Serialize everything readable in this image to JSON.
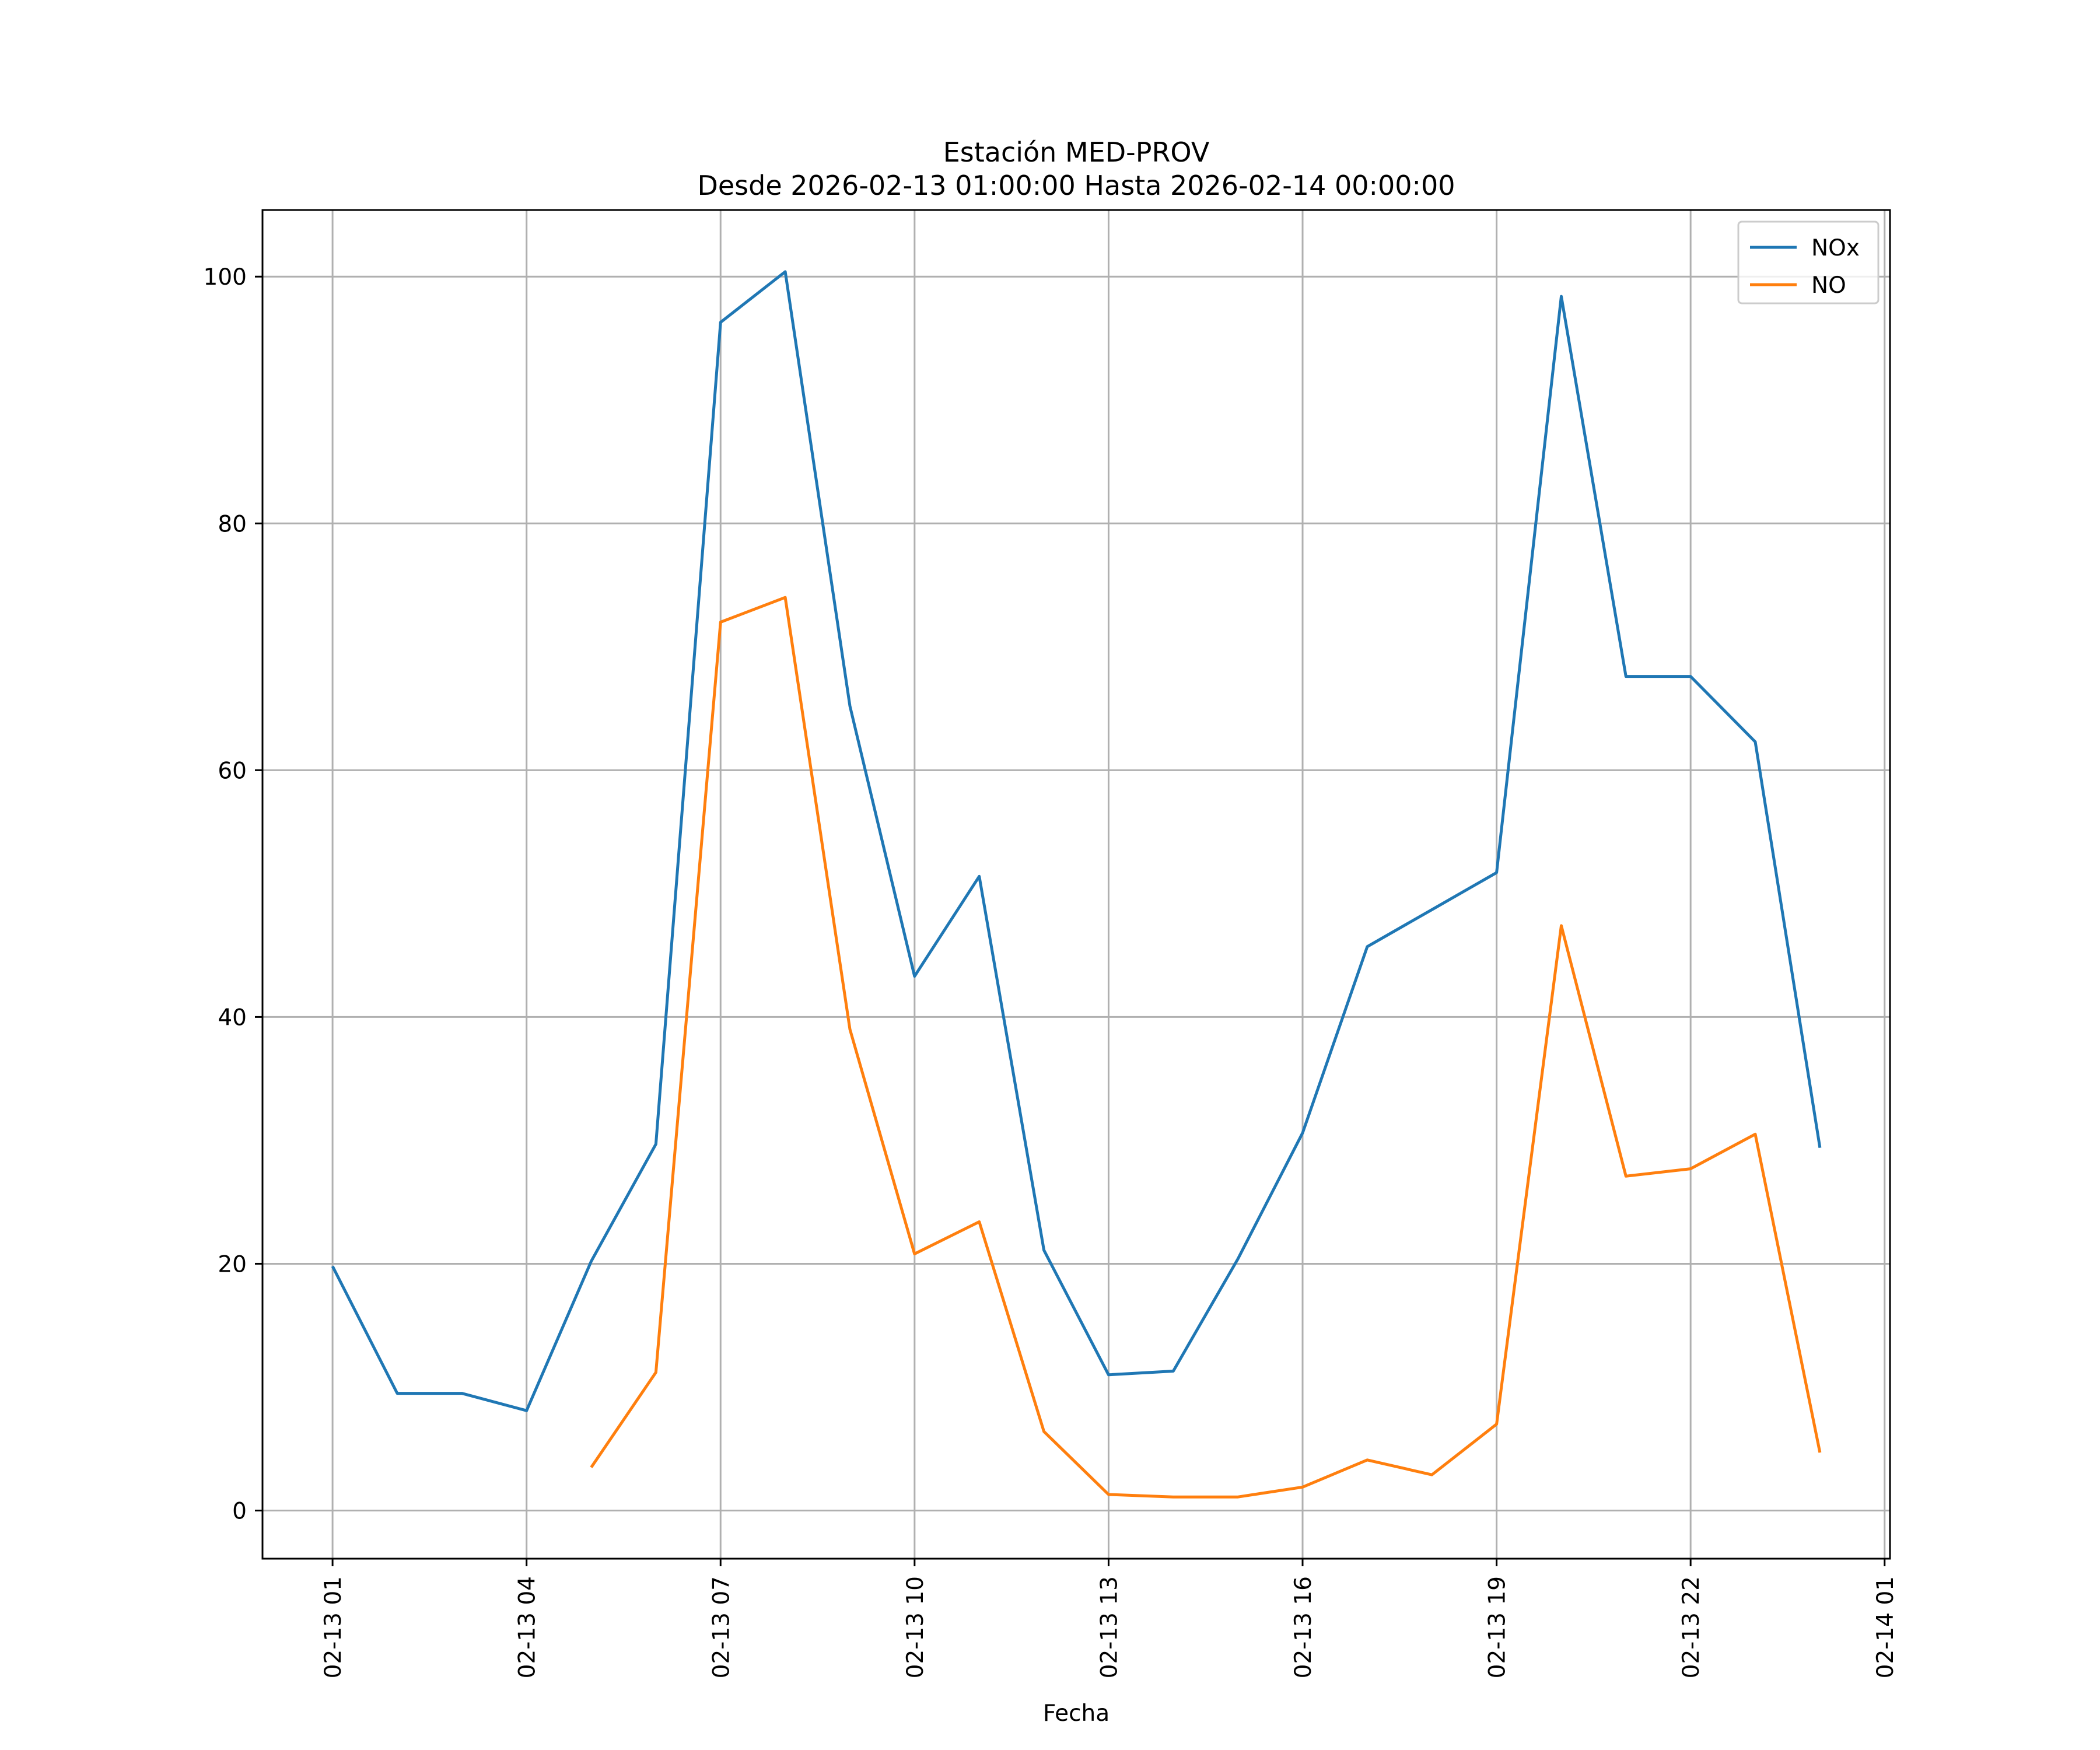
{
  "chart_data": {
    "type": "line",
    "title": "Estación MED-PROV",
    "subtitle": "Desde 2026-02-13 01:00:00 Hasta 2026-02-14 00:00:00",
    "xlabel": "Fecha",
    "ylabel": "",
    "x": [
      "2026-02-13 01:00",
      "2026-02-13 02:00",
      "2026-02-13 03:00",
      "2026-02-13 04:00",
      "2026-02-13 05:00",
      "2026-02-13 06:00",
      "2026-02-13 07:00",
      "2026-02-13 08:00",
      "2026-02-13 09:00",
      "2026-02-13 10:00",
      "2026-02-13 11:00",
      "2026-02-13 12:00",
      "2026-02-13 13:00",
      "2026-02-13 14:00",
      "2026-02-13 15:00",
      "2026-02-13 16:00",
      "2026-02-13 17:00",
      "2026-02-13 18:00",
      "2026-02-13 19:00",
      "2026-02-13 20:00",
      "2026-02-13 21:00",
      "2026-02-13 22:00",
      "2026-02-13 23:00",
      "2026-02-14 00:00"
    ],
    "series": [
      {
        "name": "NOx",
        "color": "#1f77b4",
        "values": [
          19.8,
          9.5,
          9.5,
          8.1,
          20.2,
          29.7,
          96.3,
          100.4,
          65.2,
          43.3,
          51.4,
          21.1,
          11.0,
          11.3,
          20.4,
          30.6,
          45.7,
          48.7,
          51.7,
          98.4,
          67.6,
          67.6,
          62.3,
          29.4
        ]
      },
      {
        "name": "NO",
        "color": "#ff7f0e",
        "values": [
          null,
          null,
          null,
          null,
          3.5,
          11.2,
          72.0,
          74.0,
          39.0,
          20.8,
          23.4,
          6.4,
          1.3,
          1.1,
          1.1,
          1.9,
          4.1,
          2.9,
          7.0,
          47.4,
          27.1,
          27.7,
          30.5,
          4.7
        ]
      }
    ],
    "xticks": [
      "02-13 01",
      "02-13 04",
      "02-13 07",
      "02-13 10",
      "02-13 13",
      "02-13 16",
      "02-13 19",
      "02-13 22",
      "02-14 01"
    ],
    "xtick_dates": [
      "2026-02-13 01:00",
      "2026-02-13 04:00",
      "2026-02-13 07:00",
      "2026-02-13 10:00",
      "2026-02-13 13:00",
      "2026-02-13 16:00",
      "2026-02-13 19:00",
      "2026-02-13 22:00",
      "2026-02-14 01:00"
    ],
    "xlim": [
      "2026-02-12 23:55",
      "2026-02-14 01:05"
    ],
    "yticks": [
      0,
      20,
      40,
      60,
      80,
      100
    ],
    "ylim": [
      -3.9,
      105.4
    ],
    "grid": true,
    "legend": "top-right"
  }
}
